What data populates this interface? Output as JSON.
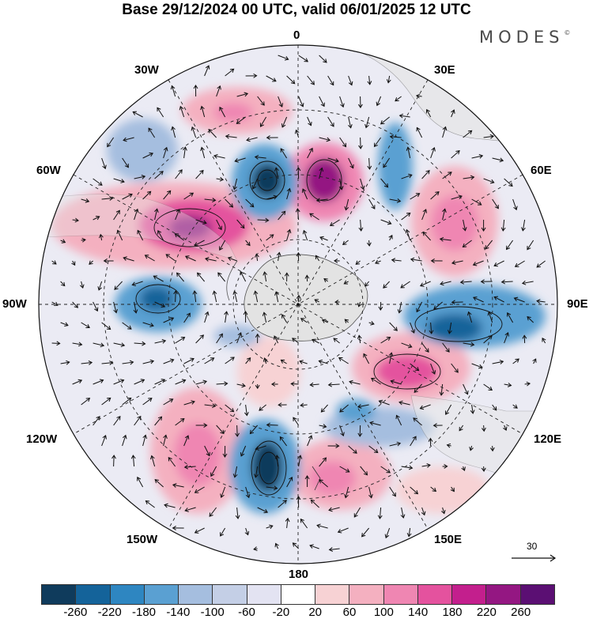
{
  "title": "Base 29/12/2024 00 UTC, valid 06/01/2025 12 UTC",
  "logo": "MODES",
  "logo_mark": "©",
  "longitude_labels": {
    "top": "0",
    "bottom": "180",
    "left": "90W",
    "right": "90E",
    "upper_left_1": "30W",
    "upper_left_2": "60W",
    "upper_right_1": "30E",
    "upper_right_2": "60E",
    "lower_left_1": "120W",
    "lower_left_2": "150W",
    "lower_right_1": "120E",
    "lower_right_2": "150E"
  },
  "vector_scale": {
    "label": "30"
  },
  "colorbar": {
    "colors": [
      "#0f3b5c",
      "#14639a",
      "#2e86c1",
      "#5aa0d2",
      "#a5bedf",
      "#c4cfe6",
      "#e3e3f2",
      "#ffffff",
      "#f7d2d4",
      "#f4b0c0",
      "#ef86b2",
      "#e4529e",
      "#c31f8d",
      "#941782",
      "#5b0f73"
    ],
    "tick_labels": [
      "-260",
      "-220",
      "-180",
      "-140",
      "-100",
      "-60",
      "-20",
      "20",
      "60",
      "100",
      "140",
      "180",
      "220",
      "260"
    ]
  },
  "map_colors": {
    "ocean_base": "#ebebf4",
    "land": "#e6e6e6",
    "graticule": "#222222"
  }
}
